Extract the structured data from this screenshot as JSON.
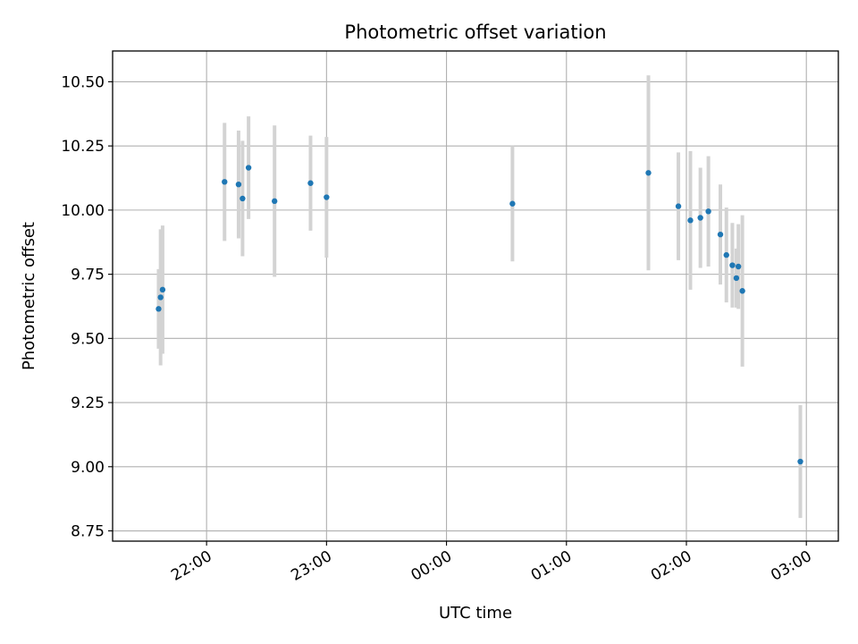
{
  "chart_data": {
    "type": "scatter",
    "title": "Photometric offset variation",
    "xlabel": "UTC time",
    "ylabel": "Photometric offset",
    "xlim": [
      "21:13",
      "03:16"
    ],
    "ylim": [
      8.71,
      10.62
    ],
    "grid": true,
    "x_ticks": [
      "22:00",
      "23:00",
      "00:00",
      "01:00",
      "02:00",
      "03:00"
    ],
    "y_ticks": [
      8.75,
      9.0,
      9.25,
      9.5,
      9.75,
      10.0,
      10.25,
      10.5
    ],
    "colors": {
      "point": "#1f77b4",
      "errorbar": "#d3d3d3",
      "grid": "#b0b0b0"
    },
    "series": [
      {
        "points": [
          {
            "x": "21:36",
            "y": 9.615,
            "yerr": 0.155
          },
          {
            "x": "21:37",
            "y": 9.66,
            "yerr": 0.265
          },
          {
            "x": "21:38",
            "y": 9.69,
            "yerr": 0.25
          },
          {
            "x": "22:09",
            "y": 10.11,
            "yerr": 0.23
          },
          {
            "x": "22:16",
            "y": 10.1,
            "yerr": 0.21
          },
          {
            "x": "22:18",
            "y": 10.045,
            "yerr": 0.225
          },
          {
            "x": "22:21",
            "y": 10.165,
            "yerr": 0.2
          },
          {
            "x": "22:34",
            "y": 10.035,
            "yerr": 0.295
          },
          {
            "x": "22:52",
            "y": 10.105,
            "yerr": 0.185
          },
          {
            "x": "23:00",
            "y": 10.05,
            "yerr": 0.235
          },
          {
            "x": "00:33",
            "y": 10.025,
            "yerr": 0.225
          },
          {
            "x": "01:41",
            "y": 10.145,
            "yerr": 0.38
          },
          {
            "x": "01:56",
            "y": 10.015,
            "yerr": 0.21
          },
          {
            "x": "02:02",
            "y": 9.96,
            "yerr": 0.27
          },
          {
            "x": "02:07",
            "y": 9.97,
            "yerr": 0.195
          },
          {
            "x": "02:11",
            "y": 9.995,
            "yerr": 0.215
          },
          {
            "x": "02:17",
            "y": 9.905,
            "yerr": 0.195
          },
          {
            "x": "02:20",
            "y": 9.825,
            "yerr": 0.185
          },
          {
            "x": "02:23",
            "y": 9.785,
            "yerr": 0.165
          },
          {
            "x": "02:25",
            "y": 9.735,
            "yerr": 0.115
          },
          {
            "x": "02:26",
            "y": 9.78,
            "yerr": 0.165
          },
          {
            "x": "02:28",
            "y": 9.685,
            "yerr": 0.295
          },
          {
            "x": "02:57",
            "y": 9.02,
            "yerr": 0.22
          }
        ]
      }
    ]
  }
}
